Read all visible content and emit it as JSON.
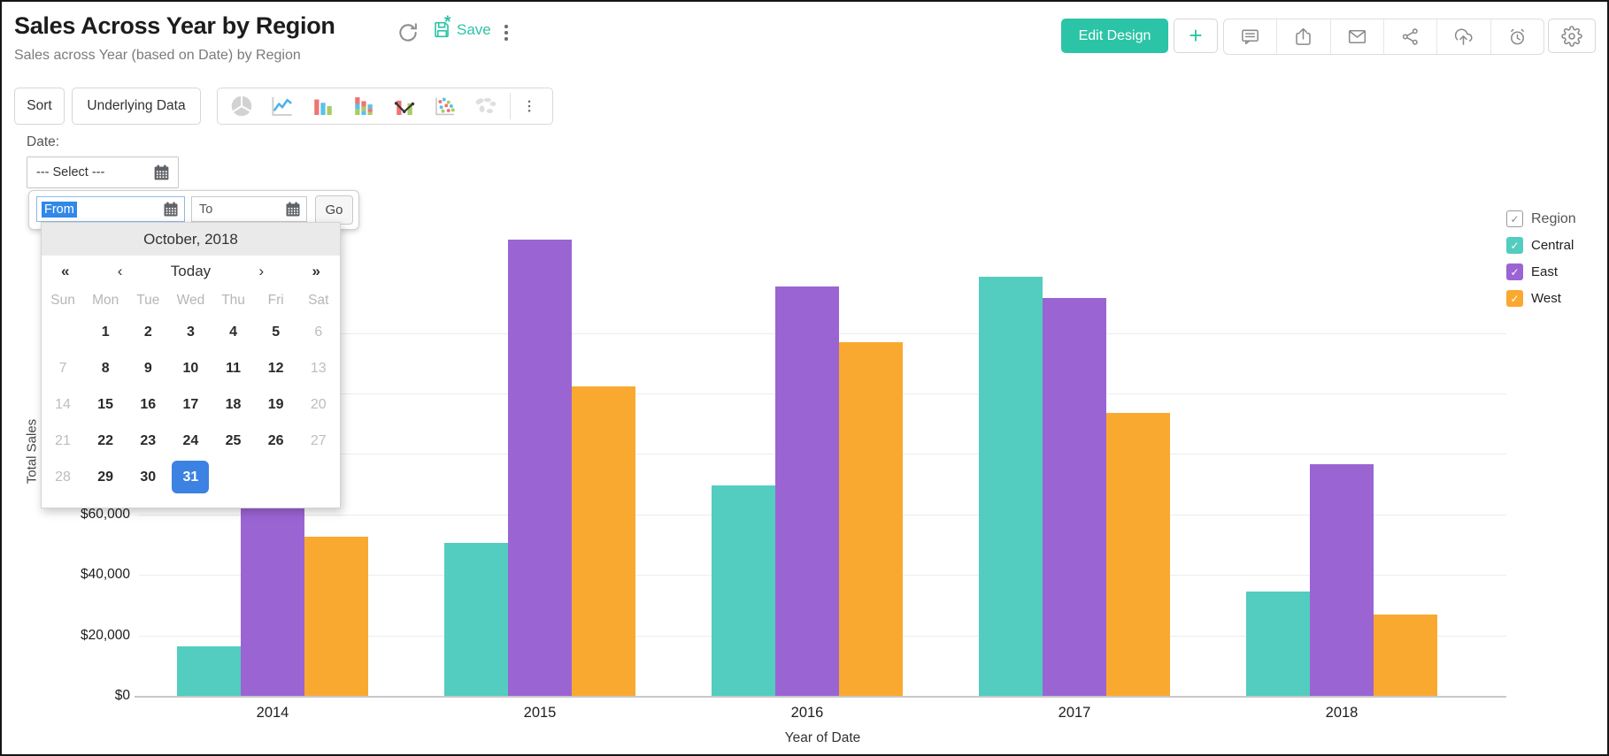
{
  "header": {
    "title": "Sales Across Year by Region",
    "subtitle": "Sales across Year (based on Date) by Region",
    "save_label": "Save",
    "edit_design_label": "Edit Design",
    "plus_label": "+",
    "action_icons": [
      "comment",
      "export",
      "email",
      "share",
      "cloud-upload",
      "alerts"
    ]
  },
  "toolbar": {
    "sort_label": "Sort",
    "underlying_data_label": "Underlying Data",
    "chart_type_icons": [
      "pie-chart",
      "line-chart",
      "bar-chart",
      "stacked-bar-chart",
      "combo-chart",
      "scatter-chart",
      "map-chart"
    ]
  },
  "filter": {
    "label": "Date:",
    "select_value": "--- Select ---",
    "from_value": "From",
    "to_value": "To",
    "go_label": "Go"
  },
  "calendar": {
    "month_label": "October, 2018",
    "today_label": "Today",
    "prev_year": "«",
    "prev_month": "‹",
    "next_month": "›",
    "next_year": "»",
    "weekdays": [
      "Sun",
      "Mon",
      "Tue",
      "Wed",
      "Thu",
      "Fri",
      "Sat"
    ],
    "weeks": [
      [
        "",
        1,
        2,
        3,
        4,
        5,
        6
      ],
      [
        7,
        8,
        9,
        10,
        11,
        12,
        13
      ],
      [
        14,
        15,
        16,
        17,
        18,
        19,
        20
      ],
      [
        21,
        22,
        23,
        24,
        25,
        26,
        27
      ],
      [
        28,
        29,
        30,
        31,
        "",
        "",
        ""
      ]
    ],
    "selected_day": 31,
    "selected_color": "#3c82e2"
  },
  "legend": {
    "title": "Region",
    "items": [
      {
        "label": "Central",
        "color": "#52CDC0"
      },
      {
        "label": "East",
        "color": "#9B64D3"
      },
      {
        "label": "West",
        "color": "#FAA930"
      }
    ]
  },
  "chart_data": {
    "type": "bar",
    "title": "Sales Across Year by Region",
    "categories": [
      "2014",
      "2015",
      "2016",
      "2017",
      "2018"
    ],
    "series": [
      {
        "name": "Central",
        "color": "#52CDC0",
        "values": [
          16500,
          50500,
          69500,
          138500,
          34500
        ]
      },
      {
        "name": "East",
        "color": "#9B64D3",
        "values": [
          64000,
          151000,
          135500,
          131500,
          76500
        ]
      },
      {
        "name": "West",
        "color": "#FAA930",
        "values": [
          52500,
          102500,
          117000,
          93500,
          27000
        ]
      }
    ],
    "xlabel": "Year of Date",
    "ylabel": "Total Sales",
    "ylim": [
      0,
      155000
    ],
    "ytick_step": 20000,
    "ytick_prefix": "$",
    "grid": true,
    "legend_position": "right"
  },
  "accent": {
    "teal": "#2cc4a7",
    "blue": "#3c82e2",
    "selection_blue": "#3188e8"
  }
}
